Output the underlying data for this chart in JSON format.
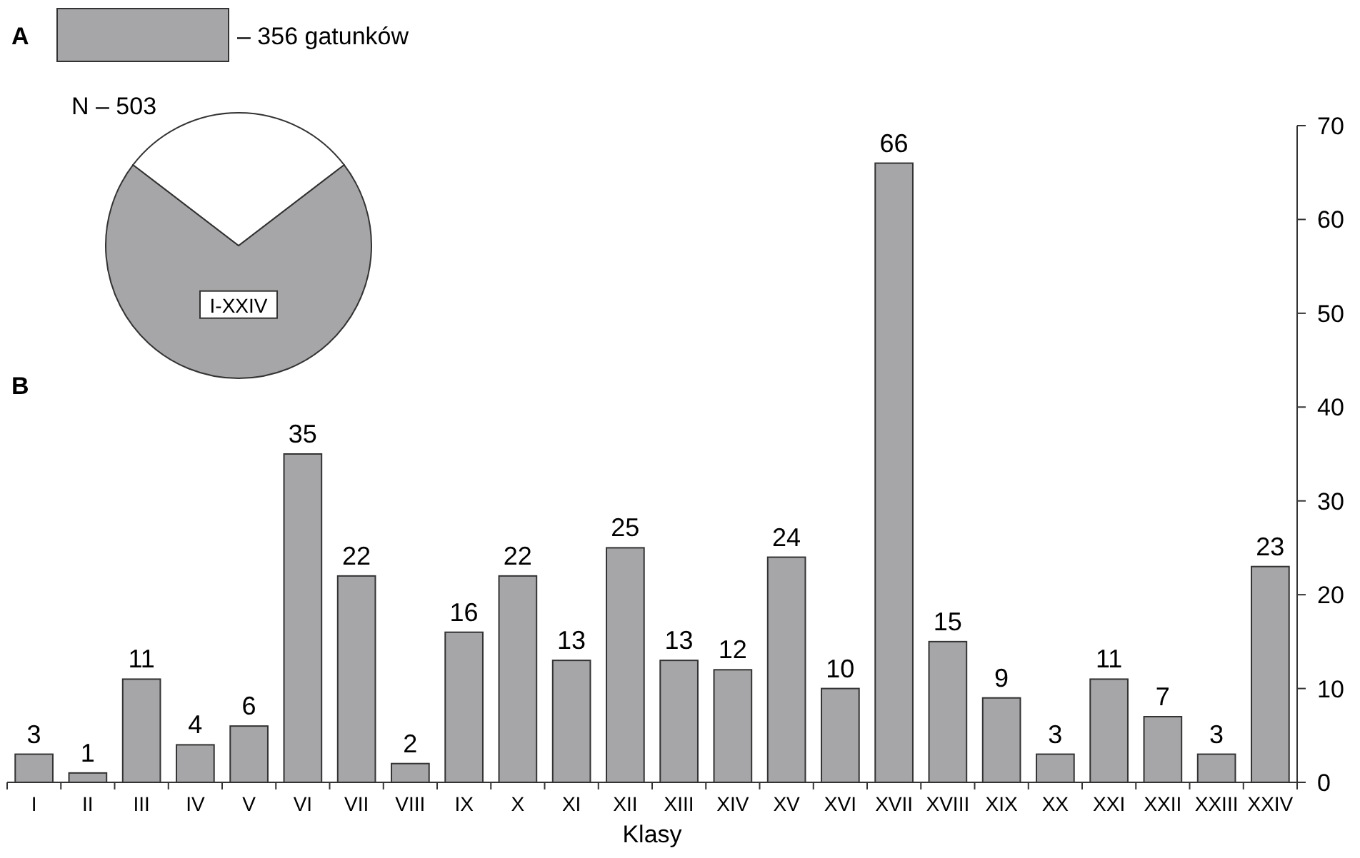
{
  "chart_data": [
    {
      "type": "pie",
      "title": "N – 503",
      "categories": [
        "I-XXIV",
        null
      ],
      "values": [
        70.8,
        29.2
      ],
      "colors": [
        "#a6a6a8",
        "#ffffff"
      ],
      "annotations": [
        "A",
        "– 356 gatunków"
      ]
    },
    {
      "type": "bar",
      "xlabel": "Klasy",
      "categories": [
        "I",
        "II",
        "III",
        "IV",
        "V",
        "VI",
        "VII",
        "VIII",
        "IX",
        "X",
        "XI",
        "XII",
        "XIII",
        "XIV",
        "XV",
        "XVI",
        "XVII",
        "XVIII",
        "XIX",
        "XX",
        "XXI",
        "XXII",
        "XXIII",
        "XXIV"
      ],
      "values": [
        3,
        1,
        11,
        4,
        6,
        35,
        22,
        2,
        16,
        22,
        13,
        25,
        13,
        12,
        24,
        10,
        66,
        15,
        9,
        3,
        11,
        7,
        3,
        23
      ],
      "color": "#a6a6a8",
      "ylim": [
        0,
        70
      ],
      "yticks": [
        0,
        10,
        20,
        30,
        40,
        50,
        60,
        70
      ],
      "data_labels": true,
      "annotations": [
        "B"
      ]
    }
  ]
}
